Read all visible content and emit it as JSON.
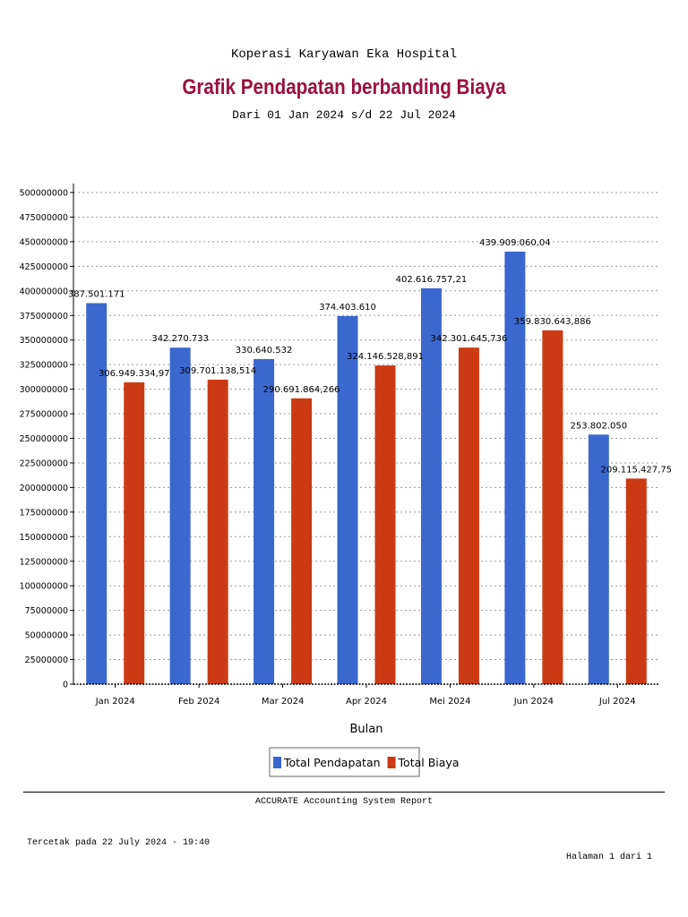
{
  "header": {
    "company": "Koperasi Karyawan Eka Hospital",
    "title": "Grafik Pendapatan berbanding Biaya",
    "period": "Dari 01 Jan 2024 s/d 22 Jul 2024"
  },
  "chart_data": {
    "type": "bar",
    "title": "Grafik Pendapatan berbanding Biaya",
    "xlabel": "Bulan",
    "ylabel": "",
    "ylim": [
      0,
      500000000
    ],
    "ytick_step": 25000000,
    "grid": true,
    "legend_position": "bottom-center",
    "categories": [
      "Jan 2024",
      "Feb 2024",
      "Mar 2024",
      "Apr 2024",
      "Mei 2024",
      "Jun 2024",
      "Jul 2024"
    ],
    "series": [
      {
        "name": "Total Pendapatan",
        "color": "#3b68cf",
        "values": [
          387501171,
          342270733,
          330640532,
          374403610,
          402616757.21,
          439909060.04,
          253802050
        ],
        "labels": [
          "387.501.171",
          "342.270.733",
          "330.640.532",
          "374.403.610",
          "402.616.757,21",
          "439.909.060,04",
          "253.802.050"
        ]
      },
      {
        "name": "Total Biaya",
        "color": "#cc3a14",
        "values": [
          306949334.97,
          309701138.514,
          290691864.266,
          324146528.891,
          342301645.736,
          359830643.886,
          209115427.75
        ],
        "labels": [
          "306.949.334,97",
          "309.701.138,514",
          "290.691.864,266",
          "324.146.528,891",
          "342.301.645,736",
          "359.830.643,886",
          "209.115.427,75"
        ]
      }
    ]
  },
  "footer": {
    "brand": "ACCURATE Accounting System Report",
    "printed_at": "Tercetak pada 22 July 2024 - 19:40",
    "page": "Halaman 1 dari 1"
  }
}
